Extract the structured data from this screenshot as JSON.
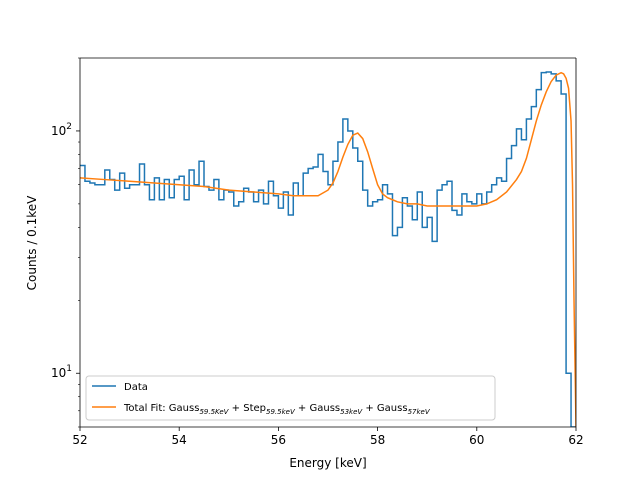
{
  "chart_data": {
    "type": "line",
    "xlabel": "Energy [keV]",
    "ylabel": "Counts / 0.1keV",
    "xlim": [
      52,
      62
    ],
    "ylim": [
      6,
      200
    ],
    "yscale": "log",
    "grid": false,
    "legend_position": "lower-left",
    "x_tick_labels": [
      "52",
      "54",
      "56",
      "58",
      "60",
      "62"
    ],
    "x_ticks": [
      52,
      54,
      56,
      58,
      60,
      62
    ],
    "y_tick_labels": [
      "10",
      "2",
      "10",
      "2"
    ],
    "y_ticks": [
      10,
      100
    ],
    "y_tick_label_parts": [
      {
        "base": "10",
        "exp": "1"
      },
      {
        "base": "10",
        "exp": "2"
      }
    ],
    "series": [
      {
        "name": "Data",
        "kind": "step",
        "color": "#1f77b4",
        "x": [
          52.0,
          52.1,
          52.2,
          52.3,
          52.4,
          52.5,
          52.6,
          52.7,
          52.8,
          52.9,
          53.0,
          53.1,
          53.2,
          53.3,
          53.4,
          53.5,
          53.6,
          53.7,
          53.8,
          53.9,
          54.0,
          54.1,
          54.2,
          54.3,
          54.4,
          54.5,
          54.6,
          54.7,
          54.8,
          54.9,
          55.0,
          55.1,
          55.2,
          55.3,
          55.4,
          55.5,
          55.6,
          55.7,
          55.8,
          55.9,
          56.0,
          56.1,
          56.2,
          56.3,
          56.4,
          56.5,
          56.6,
          56.7,
          56.8,
          56.9,
          57.0,
          57.1,
          57.2,
          57.3,
          57.4,
          57.5,
          57.6,
          57.7,
          57.8,
          57.9,
          58.0,
          58.1,
          58.2,
          58.3,
          58.4,
          58.5,
          58.6,
          58.7,
          58.8,
          58.9,
          59.0,
          59.1,
          59.2,
          59.3,
          59.4,
          59.5,
          59.6,
          59.7,
          59.8,
          59.9,
          60.0,
          60.1,
          60.2,
          60.3,
          60.4,
          60.5,
          60.6,
          60.7,
          60.8,
          60.9,
          61.0,
          61.1,
          61.2,
          61.3,
          61.4,
          61.5,
          61.6,
          61.7,
          61.8,
          61.9,
          62.0
        ],
        "y": [
          72,
          62,
          61,
          60,
          60,
          69,
          63,
          57,
          67,
          58,
          60,
          60,
          73,
          60,
          52,
          64,
          52,
          63,
          53,
          63,
          65,
          52,
          69,
          60,
          75,
          59,
          57,
          63,
          52,
          57,
          56,
          49,
          51,
          58,
          56,
          51,
          57,
          50,
          62,
          54,
          48,
          56,
          45,
          61,
          54,
          67,
          70,
          71,
          80,
          68,
          60,
          75,
          90,
          112,
          100,
          85,
          75,
          57,
          49,
          51,
          52,
          60,
          55,
          37,
          40,
          53,
          49,
          43,
          56,
          40,
          44,
          35,
          57,
          60,
          62,
          47,
          45,
          55,
          51,
          50,
          55,
          50,
          56,
          60,
          64,
          62,
          77,
          87,
          102,
          92,
          112,
          126,
          148,
          174,
          175,
          172,
          161,
          142,
          10,
          6,
          6
        ],
        "note_last": "drops below axis at 61.9"
      },
      {
        "name": "Total Fit: Gauss59.5keV + Step59.5keV + Gauss53keV + Gauss57keV",
        "kind": "line",
        "color": "#ff7f0e",
        "x": [
          52.0,
          52.5,
          53.0,
          53.5,
          54.0,
          54.5,
          55.0,
          55.5,
          56.0,
          56.3,
          56.6,
          56.8,
          57.0,
          57.1,
          57.2,
          57.3,
          57.4,
          57.5,
          57.6,
          57.7,
          57.8,
          57.9,
          58.0,
          58.1,
          58.2,
          58.3,
          58.4,
          58.6,
          58.8,
          59.0,
          59.3,
          59.6,
          59.8,
          60.0,
          60.2,
          60.4,
          60.6,
          60.8,
          60.9,
          61.0,
          61.1,
          61.2,
          61.3,
          61.4,
          61.5,
          61.6,
          61.7,
          61.75,
          61.8,
          61.85,
          61.9,
          61.93,
          61.96,
          62.0
        ],
        "y": [
          64,
          63,
          62,
          61,
          60,
          59,
          57,
          56,
          55,
          54,
          54,
          54,
          57,
          61,
          68,
          78,
          88,
          96,
          98,
          93,
          82,
          70,
          60,
          55,
          53,
          52,
          51,
          50,
          50,
          49,
          49,
          49,
          49,
          49,
          50,
          52,
          56,
          63,
          68,
          77,
          92,
          110,
          128,
          145,
          160,
          170,
          174,
          172,
          165,
          150,
          110,
          60,
          20,
          6
        ]
      }
    ],
    "legend": [
      {
        "label": "Data",
        "color": "#1f77b4"
      },
      {
        "label_parts": [
          {
            "t": "Total Fit: Gauss"
          },
          {
            "sub": "59.5keV"
          },
          {
            "t": " + Step"
          },
          {
            "sub": "59.5keV"
          },
          {
            "t": " + Gauss"
          },
          {
            "sub": "53keV"
          },
          {
            "t": " + Gauss"
          },
          {
            "sub": "57keV"
          }
        ],
        "label_text_0": "Total Fit: Gauss",
        "label_sub_0": "59.5KeV",
        "label_text_1": " + Step",
        "label_sub_1": "59.5keV",
        "label_text_2": " + Gauss",
        "label_sub_2": "53keV",
        "label_text_3": " + Gauss",
        "label_sub_3": "57keV",
        "color": "#ff7f0e"
      }
    ]
  }
}
